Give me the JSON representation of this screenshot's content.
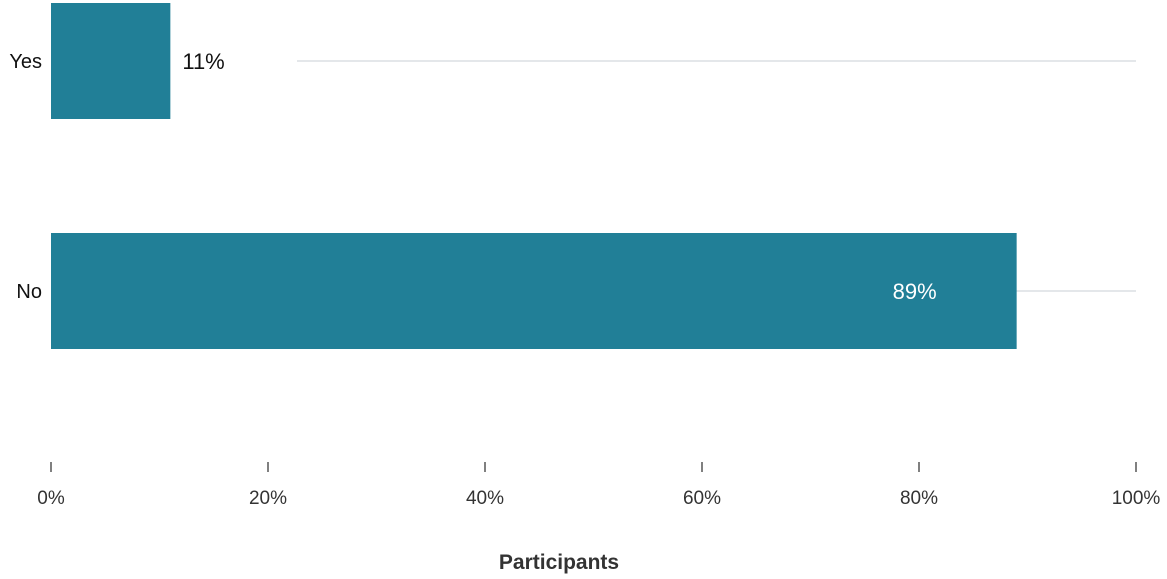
{
  "chart_data": {
    "type": "bar",
    "orientation": "horizontal",
    "categories": [
      "Yes",
      "No"
    ],
    "values": [
      11,
      89
    ],
    "value_labels": [
      "11%",
      "89%"
    ],
    "xlabel": "Participants",
    "ylabel": "",
    "xlim": [
      0,
      100
    ],
    "x_ticks": [
      0,
      20,
      40,
      60,
      80,
      100
    ],
    "x_tick_labels": [
      "0%",
      "20%",
      "40%",
      "60%",
      "80%",
      "100%"
    ],
    "grid": true,
    "legend": "none",
    "bar_color": "#217f97",
    "label_color_inside": "#ffffff",
    "label_color_outside": "#111111"
  }
}
